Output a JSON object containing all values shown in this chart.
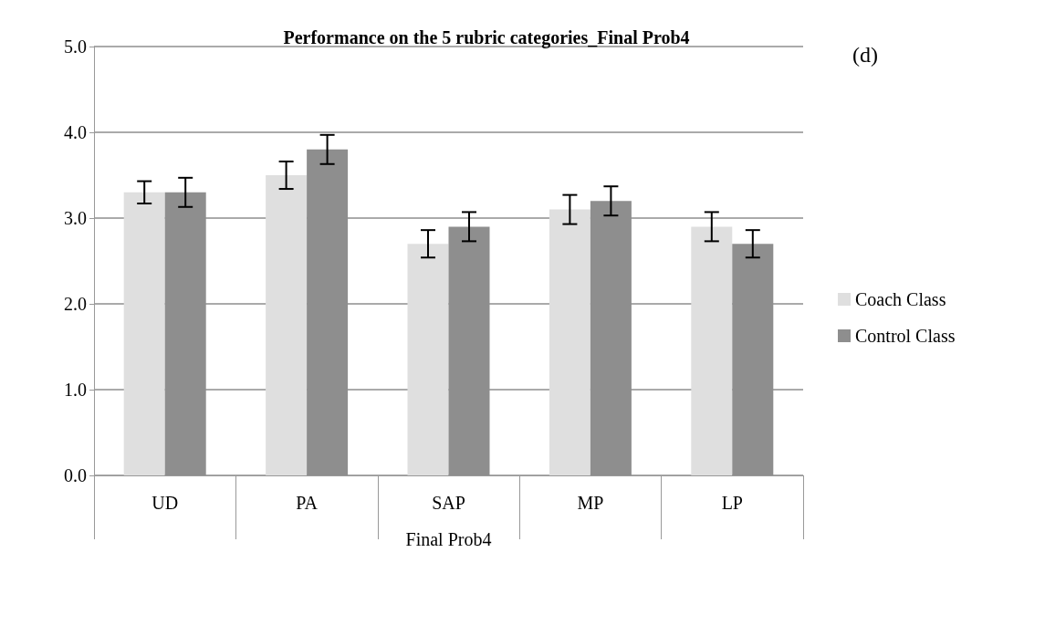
{
  "chart_data": {
    "type": "bar",
    "title": "Performance on the 5 rubric categories_Final Prob4",
    "xlabel": "Final Prob4",
    "annotations": [
      "(d)"
    ],
    "categories": [
      "UD",
      "PA",
      "SAP",
      "MP",
      "LP"
    ],
    "series": [
      {
        "name": "Coach Class",
        "color": "#dfdfdf",
        "values": [
          3.3,
          3.5,
          2.7,
          3.1,
          2.9
        ],
        "errors": [
          0.13,
          0.16,
          0.16,
          0.17,
          0.17
        ]
      },
      {
        "name": "Control Class",
        "color": "#8e8e8e",
        "values": [
          3.3,
          3.8,
          2.9,
          3.2,
          2.7
        ],
        "errors": [
          0.17,
          0.17,
          0.17,
          0.17,
          0.16
        ]
      }
    ],
    "ylim": [
      0,
      5
    ],
    "yticks": [
      {
        "value": 0,
        "label": "0.0"
      },
      {
        "value": 1,
        "label": "1.0"
      },
      {
        "value": 2,
        "label": "2.0"
      },
      {
        "value": 3,
        "label": "3.0"
      },
      {
        "value": 4,
        "label": "4.0"
      },
      {
        "value": 5,
        "label": "5.0"
      }
    ],
    "grid": "y",
    "legend": "right"
  }
}
